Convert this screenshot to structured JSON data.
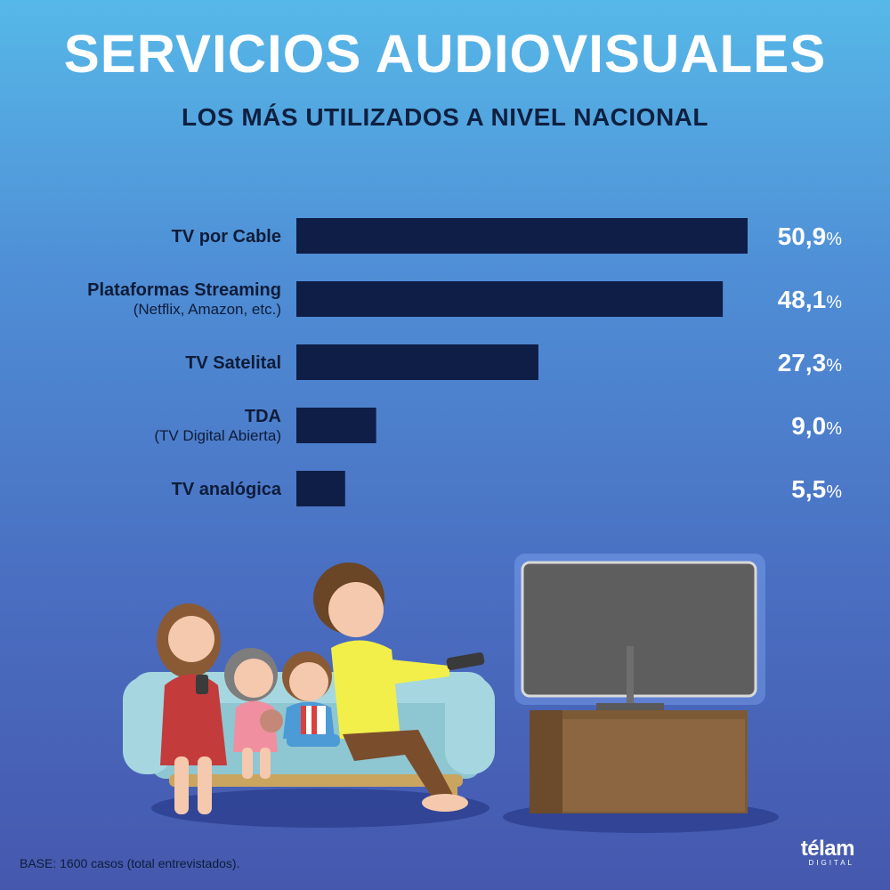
{
  "header": {
    "title": "SERVICIOS AUDIOVISUALES",
    "subtitle": "LOS MÁS UTILIZADOS A NIVEL NACIONAL"
  },
  "chart_data": {
    "type": "bar",
    "orientation": "horizontal",
    "title": "SERVICIOS AUDIOVISUALES",
    "subtitle": "LOS MÁS UTILIZADOS A NIVEL NACIONAL",
    "categories": [
      "TV por Cable",
      "Plataformas Streaming",
      "TV Satelital",
      "TDA",
      "TV analógica"
    ],
    "category_sublabels": [
      "",
      "(Netflix, Amazon, etc.)",
      "",
      "(TV Digital Abierta)",
      ""
    ],
    "values": [
      50.9,
      48.1,
      27.3,
      9.0,
      5.5
    ],
    "value_labels": [
      "50,9",
      "48,1",
      "27,3",
      "9,0",
      "5,5"
    ],
    "unit": "%",
    "xlim": [
      0,
      51
    ],
    "grid": false,
    "legend": "none",
    "bar_color": "#0f1e47"
  },
  "footer": {
    "base_note": "BASE: 1600 casos (total entrevistados).",
    "logo_name": "télam",
    "logo_sub": "DIGITAL"
  },
  "colors": {
    "background_top": "#56b8e8",
    "background_bottom": "#4558ae",
    "bar": "#0f1e47",
    "title": "#ffffff",
    "subtitle": "#0f2040"
  },
  "illustration": {
    "description_icon": "family-watching-tv-icon"
  }
}
